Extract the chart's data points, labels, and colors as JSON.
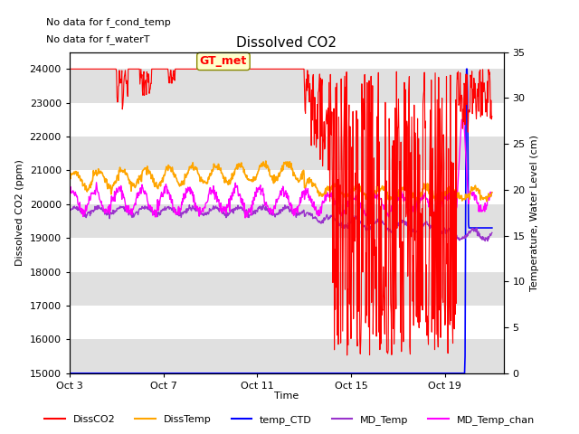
{
  "title": "Dissolved CO2",
  "top_annotations": [
    "No data for f_cond_temp",
    "No data for f_waterT"
  ],
  "gt_met_label": "GT_met",
  "xlabel": "Time",
  "ylabel_left": "Dissolved CO2 (ppm)",
  "ylabel_right": "Temperature, Water Level (cm)",
  "ylim_left": [
    15000,
    24500
  ],
  "ylim_right": [
    0,
    35
  ],
  "yticks_left": [
    15000,
    16000,
    17000,
    18000,
    19000,
    20000,
    21000,
    22000,
    23000,
    24000
  ],
  "yticks_right": [
    0,
    5,
    10,
    15,
    20,
    25,
    30,
    35
  ],
  "xtick_positions": [
    0,
    4,
    8,
    12,
    16
  ],
  "xtick_labels": [
    "Oct 3",
    "Oct 7",
    "Oct 11",
    "Oct 15",
    "Oct 19"
  ],
  "xlim": [
    0,
    18.5
  ],
  "background_color": "#ffffff",
  "band_color": "#e0e0e0",
  "series_colors": {
    "DissCO2": "#ff0000",
    "DissTemp": "#ffa500",
    "temp_CTD": "#0000ff",
    "MD_Temp": "#9933cc",
    "MD_Temp_chan": "#ff00ff"
  },
  "legend_labels": [
    "DissCO2",
    "DissTemp",
    "temp_CTD",
    "MD_Temp",
    "MD_Temp_chan"
  ]
}
